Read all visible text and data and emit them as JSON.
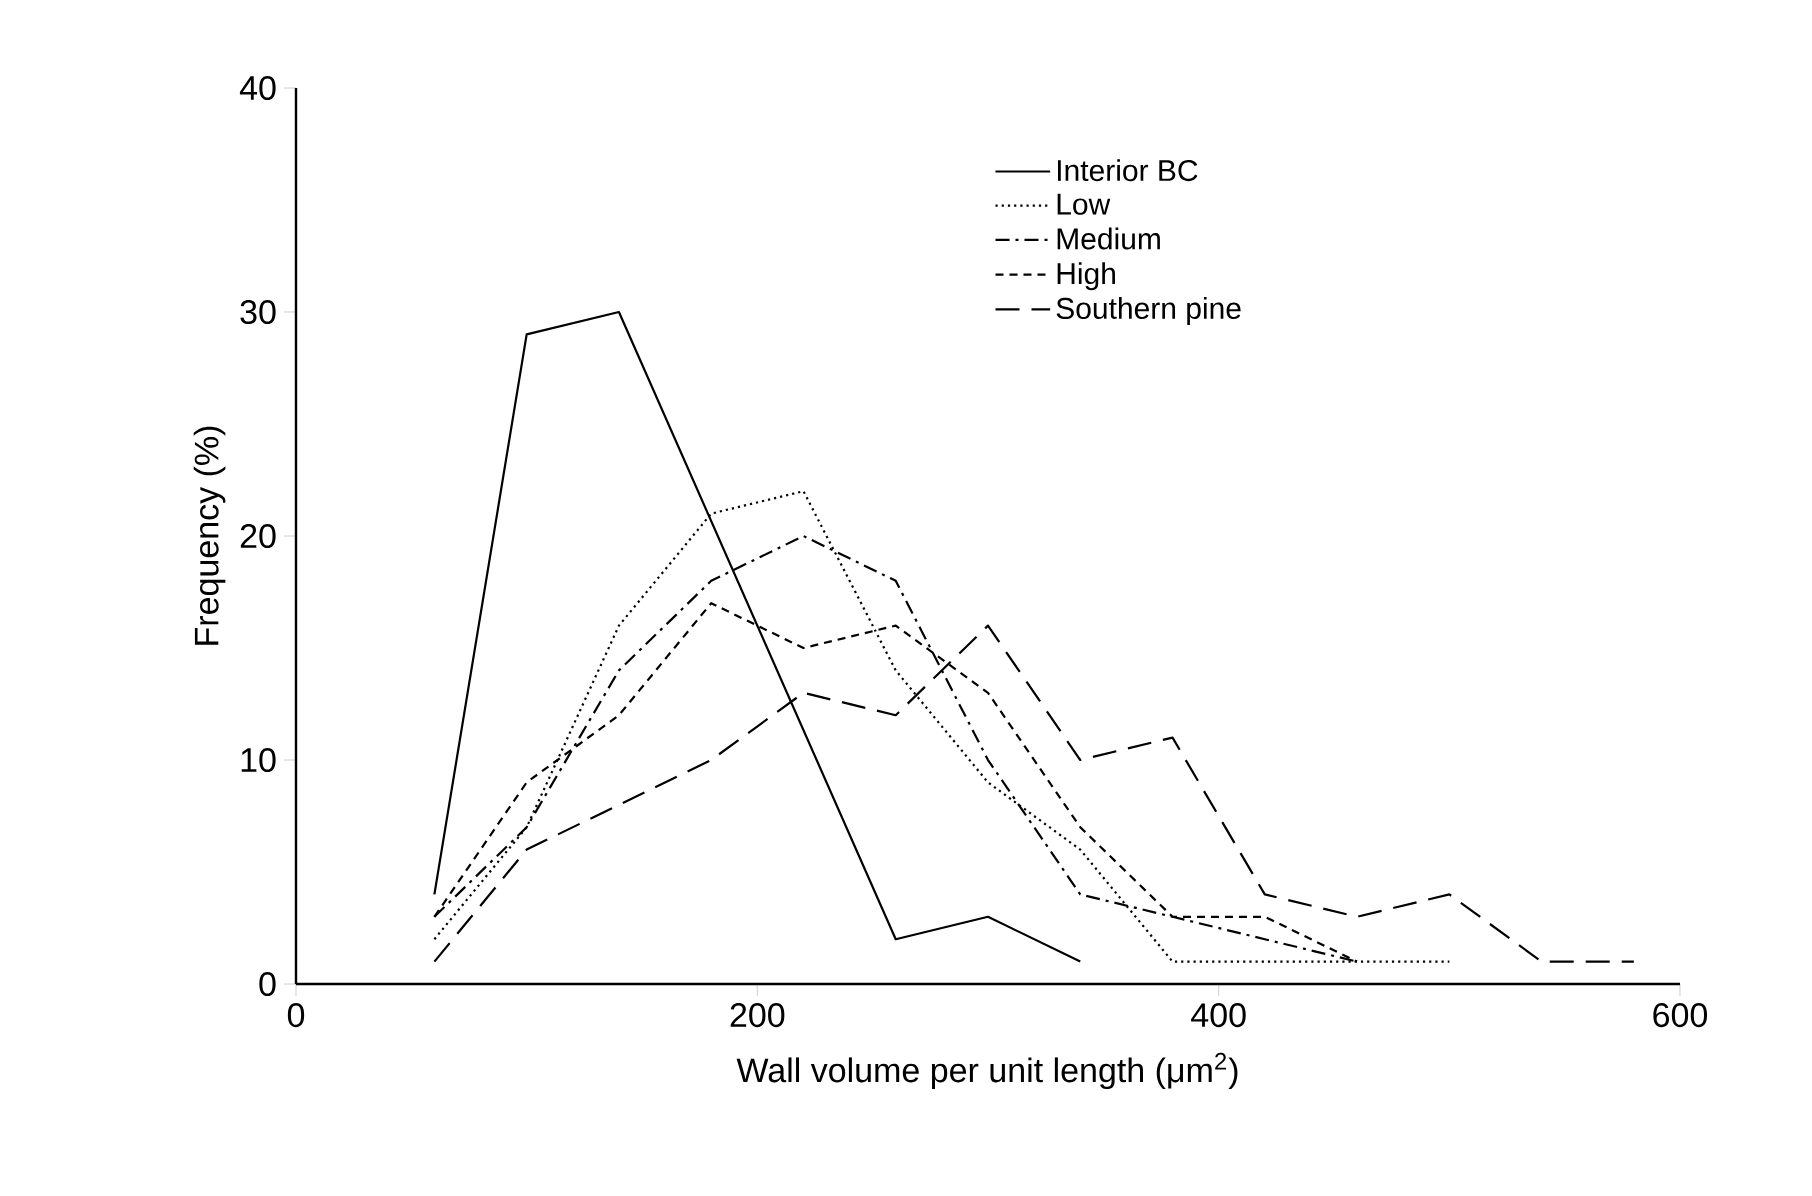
{
  "chart_data": {
    "type": "line",
    "xlabel": "Wall volume per unit length (μm$^{2}$)",
    "ylabel": "Frequency (%)",
    "xlim": [
      0,
      600
    ],
    "ylim": [
      0,
      40
    ],
    "xticks": [
      0,
      200,
      400,
      600
    ],
    "yticks": [
      0,
      10,
      20,
      30,
      40
    ],
    "grid": false,
    "legend": "top right",
    "marker": "none",
    "series": [
      {
        "name": "Interior BC",
        "color": "#000000",
        "line_style": "solid",
        "x": [
          60,
          100,
          140,
          260,
          300,
          340
        ],
        "values": [
          4,
          29,
          30,
          2,
          3,
          1
        ]
      },
      {
        "name": "Low",
        "color": "#000000",
        "line_style": "dotted",
        "x": [
          60,
          100,
          140,
          180,
          220,
          260,
          300,
          340,
          380,
          420,
          460,
          500
        ],
        "values": [
          2,
          7,
          16,
          21,
          22,
          14,
          9,
          6,
          1,
          1,
          1,
          1
        ]
      },
      {
        "name": "Medium",
        "color": "#000000",
        "line_style": "dashdot",
        "x": [
          60,
          100,
          140,
          180,
          220,
          260,
          300,
          340,
          380,
          420,
          460
        ],
        "values": [
          3,
          7,
          14,
          18,
          20,
          18,
          10,
          4,
          3,
          2,
          1
        ]
      },
      {
        "name": "High",
        "color": "#000000",
        "line_style": "dashed",
        "x": [
          60,
          100,
          140,
          180,
          220,
          260,
          300,
          340,
          380,
          420,
          460
        ],
        "values": [
          3,
          9,
          12,
          17,
          15,
          16,
          13,
          7,
          3,
          3,
          1
        ]
      },
      {
        "name": "Southern pine",
        "color": "#000000",
        "line_style": "longdash",
        "x": [
          60,
          100,
          140,
          180,
          220,
          260,
          300,
          340,
          380,
          420,
          460,
          500,
          540,
          580
        ],
        "values": [
          1,
          6,
          8,
          10,
          13,
          12,
          16,
          10,
          11,
          4,
          3,
          4,
          1,
          1
        ]
      }
    ]
  }
}
